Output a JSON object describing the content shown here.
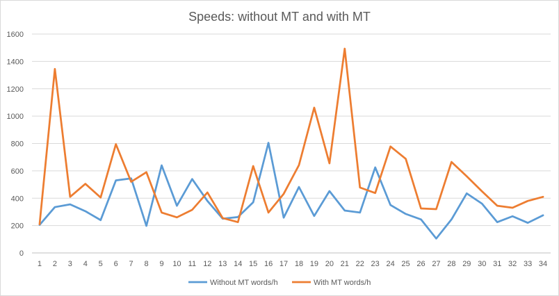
{
  "chart_data": {
    "type": "line",
    "title": "Speeds: without MT and with MT",
    "categories": [
      "1",
      "2",
      "3",
      "4",
      "5",
      "6",
      "7",
      "8",
      "9",
      "10",
      "11",
      "12",
      "13",
      "14",
      "15",
      "16",
      "17",
      "18",
      "19",
      "20",
      "21",
      "22",
      "23",
      "24",
      "25",
      "26",
      "27",
      "28",
      "29",
      "30",
      "31",
      "32",
      "33",
      "34"
    ],
    "series": [
      {
        "name": "Without MT words/h",
        "color": "#5b9bd5",
        "values": [
          205,
          335,
          355,
          305,
          240,
          530,
          545,
          198,
          640,
          345,
          540,
          380,
          250,
          262,
          370,
          805,
          258,
          482,
          270,
          452,
          310,
          295,
          625,
          350,
          285,
          245,
          105,
          245,
          435,
          360,
          225,
          268,
          220,
          275
        ]
      },
      {
        "name": "With MT words/h",
        "color": "#ed7d31",
        "values": [
          210,
          1345,
          410,
          505,
          405,
          795,
          520,
          590,
          295,
          260,
          315,
          442,
          255,
          225,
          635,
          295,
          432,
          642,
          1062,
          655,
          1493,
          478,
          438,
          778,
          688,
          325,
          320,
          665,
          560,
          450,
          345,
          330,
          380,
          410
        ]
      }
    ],
    "ylim": [
      0,
      1600
    ],
    "yticks": [
      "0",
      "200",
      "400",
      "600",
      "800",
      "1000",
      "1200",
      "1400",
      "1600"
    ],
    "grid": true,
    "legend": "bottom"
  }
}
